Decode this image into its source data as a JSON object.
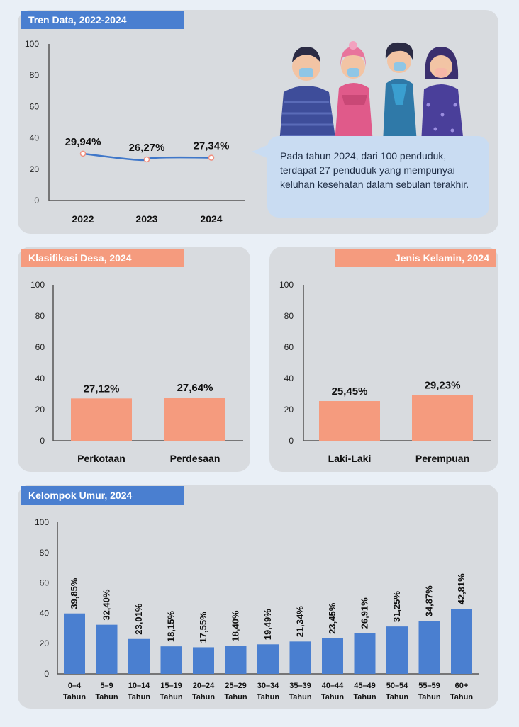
{
  "trend_section": {
    "title": "Tren Data, 2022-2024",
    "speech": "Pada tahun 2024, dari 100 penduduk, terdapat 27 penduduk yang mempunyai keluhan kesehatan dalam sebulan terakhir."
  },
  "desa_section": {
    "title": "Klasifikasi Desa, 2024"
  },
  "gender_section": {
    "title": "Jenis Kelamin, 2024"
  },
  "age_section": {
    "title": "Kelompok Umur, 2024"
  },
  "colors": {
    "blue": "#4a7fd0",
    "orange": "#f59b7e",
    "line": "#3f77c9",
    "marker": "#f08f7f"
  },
  "chart_data": [
    {
      "id": "trend",
      "type": "line",
      "title": "Tren Data, 2022-2024",
      "categories": [
        "2022",
        "2023",
        "2024"
      ],
      "values": [
        29.94,
        26.27,
        27.34
      ],
      "labels": [
        "29,94%",
        "26,27%",
        "27,34%"
      ],
      "ylim": [
        0,
        100
      ],
      "yticks": [
        "0",
        "20",
        "40",
        "60",
        "80",
        "100"
      ],
      "grid": false
    },
    {
      "id": "desa",
      "type": "bar",
      "title": "Klasifikasi Desa, 2024",
      "categories": [
        "Perkotaan",
        "Perdesaan"
      ],
      "values": [
        27.12,
        27.64
      ],
      "labels": [
        "27,12%",
        "27,64%"
      ],
      "ylim": [
        0,
        100
      ],
      "yticks": [
        "0",
        "20",
        "40",
        "60",
        "80",
        "100"
      ],
      "grid": false
    },
    {
      "id": "gender",
      "type": "bar",
      "title": "Jenis Kelamin, 2024",
      "categories": [
        "Laki-Laki",
        "Perempuan"
      ],
      "values": [
        25.45,
        29.23
      ],
      "labels": [
        "25,45%",
        "29,23%"
      ],
      "ylim": [
        0,
        100
      ],
      "yticks": [
        "0",
        "20",
        "40",
        "60",
        "80",
        "100"
      ],
      "grid": false
    },
    {
      "id": "age",
      "type": "bar",
      "title": "Kelompok Umur, 2024",
      "categories": [
        "0–4",
        "5–9",
        "10–14",
        "15–19",
        "20–24",
        "25–29",
        "30–34",
        "35–39",
        "40–44",
        "45–49",
        "50–54",
        "55–59",
        "60+"
      ],
      "category_unit": "Tahun",
      "values": [
        39.85,
        32.4,
        23.01,
        18.15,
        17.55,
        18.4,
        19.49,
        21.34,
        23.45,
        26.91,
        31.25,
        34.87,
        42.81
      ],
      "labels": [
        "39,85%",
        "32,40%",
        "23,01%",
        "18,15%",
        "17,55%",
        "18,40%",
        "19,49%",
        "21,34%",
        "23,45%",
        "26,91%",
        "31,25%",
        "34,87%",
        "42,81%"
      ],
      "ylim": [
        0,
        100
      ],
      "yticks": [
        "0",
        "20",
        "40",
        "60",
        "80",
        "100"
      ],
      "grid": false
    }
  ]
}
